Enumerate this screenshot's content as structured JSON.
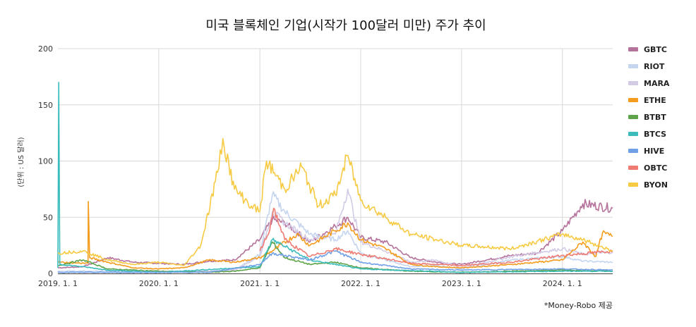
{
  "chart_data": {
    "type": "line",
    "title": "미국 블록체인 기업(시작가 100달러 미만) 주가 추이",
    "ylabel": "(단위 : US 달러)",
    "note": "*Money-Robo 제공",
    "xlim": [
      "2019-01-01",
      "2024-07-01"
    ],
    "ylim": [
      0,
      200
    ],
    "yticks": [
      "0",
      "50",
      "100",
      "150",
      "200"
    ],
    "xticks": [
      {
        "date": "2019-01-01",
        "label": "2019. 1. 1"
      },
      {
        "date": "2020-01-01",
        "label": "2020. 1. 1"
      },
      {
        "date": "2021-01-01",
        "label": "2021. 1. 1"
      },
      {
        "date": "2022-01-01",
        "label": "2022. 1. 1"
      },
      {
        "date": "2023-01-01",
        "label": "2023. 1. 1"
      },
      {
        "date": "2024-01-01",
        "label": "2024. 1. 1"
      }
    ],
    "grid": true,
    "legend_position": "right",
    "series": [
      {
        "name": "GBTC",
        "color": "#b5729b",
        "x": [
          "2019-01-01",
          "2019-04-01",
          "2019-07-01",
          "2019-10-01",
          "2020-01-01",
          "2020-04-01",
          "2020-07-01",
          "2020-10-01",
          "2021-01-01",
          "2021-02-15",
          "2021-04-01",
          "2021-07-01",
          "2021-10-01",
          "2021-11-15",
          "2022-01-01",
          "2022-04-01",
          "2022-07-01",
          "2022-10-01",
          "2023-01-01",
          "2023-04-01",
          "2023-07-01",
          "2023-10-01",
          "2024-01-01",
          "2024-03-15",
          "2024-07-01"
        ],
        "y": [
          5,
          6,
          14,
          10,
          9,
          8,
          11,
          12,
          30,
          48,
          45,
          28,
          42,
          50,
          32,
          28,
          14,
          10,
          8,
          12,
          16,
          18,
          38,
          62,
          58
        ]
      },
      {
        "name": "RIOT",
        "color": "#c5d5f0",
        "x": [
          "2019-01-01",
          "2019-07-01",
          "2020-01-01",
          "2020-07-01",
          "2020-10-01",
          "2021-01-01",
          "2021-02-15",
          "2021-04-01",
          "2021-07-01",
          "2021-10-01",
          "2021-11-15",
          "2022-01-01",
          "2022-04-01",
          "2022-07-01",
          "2022-10-01",
          "2023-01-01",
          "2023-07-01",
          "2024-01-01",
          "2024-03-15",
          "2024-07-01"
        ],
        "y": [
          2,
          2,
          1,
          2,
          3,
          17,
          70,
          55,
          35,
          30,
          38,
          18,
          12,
          6,
          7,
          4,
          12,
          15,
          11,
          10
        ]
      },
      {
        "name": "MARA",
        "color": "#d3cbe6",
        "x": [
          "2019-01-01",
          "2019-07-01",
          "2020-01-01",
          "2020-07-01",
          "2020-10-01",
          "2021-01-01",
          "2021-02-15",
          "2021-04-01",
          "2021-07-01",
          "2021-10-01",
          "2021-11-15",
          "2022-01-01",
          "2022-04-01",
          "2022-07-01",
          "2022-10-01",
          "2023-01-01",
          "2023-07-01",
          "2024-01-01",
          "2024-03-15",
          "2024-07-01"
        ],
        "y": [
          1,
          1,
          1,
          2,
          3,
          15,
          55,
          45,
          30,
          35,
          75,
          28,
          20,
          10,
          12,
          5,
          15,
          22,
          17,
          19
        ]
      },
      {
        "name": "ETHE",
        "color": "#f39c1e",
        "x": [
          "2019-01-01",
          "2019-04-20",
          "2019-04-21",
          "2019-04-26",
          "2019-07-01",
          "2019-10-01",
          "2020-01-01",
          "2020-04-01",
          "2020-07-01",
          "2020-10-01",
          "2021-01-01",
          "2021-02-15",
          "2021-05-15",
          "2021-07-01",
          "2021-10-01",
          "2021-11-15",
          "2022-01-01",
          "2022-04-01",
          "2022-07-01",
          "2022-10-01",
          "2023-01-01",
          "2023-07-01",
          "2024-01-01",
          "2024-03-15",
          "2024-05-01",
          "2024-05-25",
          "2024-07-01"
        ],
        "y": [
          10,
          9,
          64,
          14,
          10,
          5,
          4,
          5,
          12,
          10,
          14,
          20,
          35,
          25,
          38,
          45,
          30,
          22,
          8,
          6,
          5,
          8,
          12,
          28,
          15,
          36,
          33
        ]
      },
      {
        "name": "BTBT",
        "color": "#5fa34a",
        "x": [
          "2019-01-01",
          "2019-04-01",
          "2019-07-01",
          "2020-01-01",
          "2020-07-01",
          "2020-10-01",
          "2021-01-01",
          "2021-02-15",
          "2021-04-01",
          "2021-07-01",
          "2021-10-01",
          "2022-01-01",
          "2022-07-01",
          "2023-01-01",
          "2024-01-01",
          "2024-07-01"
        ],
        "y": [
          7,
          12,
          4,
          2,
          1,
          2,
          5,
          28,
          14,
          8,
          10,
          5,
          2,
          1,
          3,
          2
        ]
      },
      {
        "name": "BTCS",
        "color": "#3bbcbc",
        "x": [
          "2019-01-01",
          "2019-01-04",
          "2019-01-08",
          "2019-04-01",
          "2019-07-01",
          "2020-01-01",
          "2021-01-01",
          "2021-02-15",
          "2021-07-01",
          "2022-01-01",
          "2023-01-01",
          "2024-01-01",
          "2024-07-01"
        ],
        "y": [
          5,
          170,
          8,
          6,
          3,
          1,
          6,
          30,
          12,
          4,
          1,
          2,
          2
        ]
      },
      {
        "name": "HIVE",
        "color": "#6fa0e6",
        "x": [
          "2019-01-01",
          "2019-07-01",
          "2020-01-01",
          "2020-07-01",
          "2021-01-01",
          "2021-02-15",
          "2021-07-01",
          "2021-10-01",
          "2022-01-01",
          "2022-07-01",
          "2023-01-01",
          "2024-01-01",
          "2024-07-01"
        ],
        "y": [
          1,
          1,
          1,
          1,
          8,
          18,
          12,
          20,
          10,
          4,
          3,
          4,
          3
        ]
      },
      {
        "name": "OBTC",
        "color": "#ef7b72",
        "x": [
          "2021-01-01",
          "2021-02-01",
          "2021-02-20",
          "2021-04-01",
          "2021-07-01",
          "2021-10-01",
          "2022-01-01",
          "2022-07-01",
          "2023-01-01",
          "2023-07-01",
          "2024-01-01",
          "2024-07-01"
        ],
        "y": [
          20,
          35,
          58,
          30,
          15,
          22,
          17,
          9,
          7,
          10,
          16,
          20
        ]
      },
      {
        "name": "BYON",
        "color": "#f6ca42",
        "x": [
          "2019-01-01",
          "2019-04-01",
          "2019-07-01",
          "2019-10-01",
          "2020-01-01",
          "2020-04-01",
          "2020-06-01",
          "2020-08-01",
          "2020-08-20",
          "2020-10-01",
          "2020-12-01",
          "2021-01-01",
          "2021-01-25",
          "2021-04-01",
          "2021-06-01",
          "2021-08-01",
          "2021-10-01",
          "2021-11-15",
          "2022-01-01",
          "2022-04-01",
          "2022-07-01",
          "2022-10-01",
          "2023-01-01",
          "2023-07-01",
          "2024-01-01",
          "2024-03-15",
          "2024-07-01"
        ],
        "y": [
          18,
          20,
          12,
          8,
          10,
          7,
          25,
          90,
          120,
          75,
          60,
          55,
          100,
          75,
          95,
          60,
          70,
          105,
          65,
          50,
          35,
          30,
          25,
          22,
          35,
          30,
          20
        ]
      }
    ]
  }
}
